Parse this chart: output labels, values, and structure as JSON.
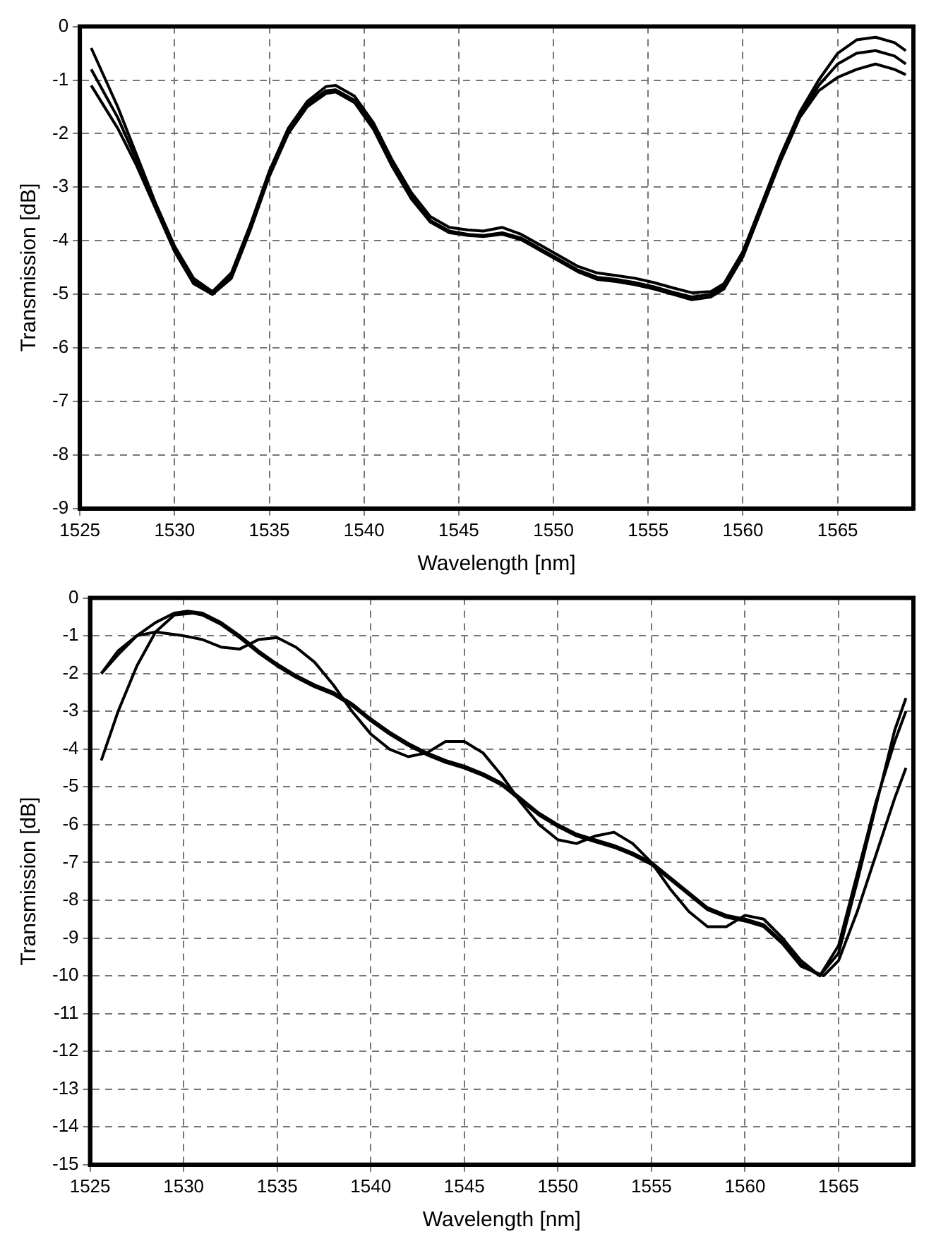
{
  "chart_data": [
    {
      "type": "line",
      "xlabel": "Wavelength [nm]",
      "ylabel": "Transmission [dB]",
      "xlim": [
        1525,
        1569
      ],
      "xticks": [
        1525,
        1530,
        1535,
        1540,
        1545,
        1550,
        1555,
        1560,
        1565
      ],
      "ylim": [
        -9,
        0
      ],
      "yticks": [
        -9,
        -8,
        -7,
        -6,
        -5,
        -4,
        -3,
        -2,
        -1,
        0
      ],
      "grid": true,
      "legend": false,
      "marker": "none",
      "line_style": "solid",
      "series": [
        {
          "color": "#000000",
          "x": [
            1525.6,
            1527,
            1528,
            1529,
            1530,
            1531,
            1532,
            1533,
            1534,
            1535,
            1536,
            1537,
            1538,
            1538.5,
            1539.5,
            1540.5,
            1541.5,
            1542.5,
            1543.5,
            1544.5,
            1545.5,
            1546.3,
            1547.3,
            1548.3,
            1549.3,
            1550.3,
            1551.3,
            1552.3,
            1553.3,
            1554.3,
            1555.3,
            1556.3,
            1557.3,
            1558.3,
            1559,
            1560,
            1561,
            1562,
            1563,
            1564,
            1565,
            1566,
            1567,
            1568,
            1568.6
          ],
          "values": [
            -0.4,
            -1.5,
            -2.4,
            -3.3,
            -4.1,
            -4.7,
            -4.95,
            -4.6,
            -3.7,
            -2.7,
            -1.9,
            -1.4,
            -1.12,
            -1.1,
            -1.3,
            -1.8,
            -2.5,
            -3.1,
            -3.55,
            -3.75,
            -3.8,
            -3.82,
            -3.75,
            -3.88,
            -4.08,
            -4.28,
            -4.48,
            -4.6,
            -4.65,
            -4.7,
            -4.78,
            -4.88,
            -4.97,
            -4.95,
            -4.8,
            -4.2,
            -3.3,
            -2.4,
            -1.6,
            -1.0,
            -0.5,
            -0.25,
            -0.2,
            -0.3,
            -0.45
          ]
        },
        {
          "color": "#000000",
          "x": [
            1525.6,
            1527,
            1528,
            1529,
            1530,
            1531,
            1532,
            1533,
            1534,
            1535,
            1536,
            1537,
            1538,
            1538.5,
            1539.5,
            1540.5,
            1541.5,
            1542.5,
            1543.5,
            1544.5,
            1545.5,
            1546.3,
            1547.3,
            1548.3,
            1549.3,
            1550.3,
            1551.3,
            1552.3,
            1553.3,
            1554.3,
            1555.3,
            1556.3,
            1557.3,
            1558.3,
            1559,
            1560,
            1561,
            1562,
            1563,
            1564,
            1565,
            1566,
            1567,
            1568,
            1568.6
          ],
          "values": [
            -0.8,
            -1.7,
            -2.5,
            -3.35,
            -4.15,
            -4.75,
            -5.0,
            -4.65,
            -3.75,
            -2.75,
            -1.95,
            -1.45,
            -1.2,
            -1.18,
            -1.38,
            -1.88,
            -2.58,
            -3.18,
            -3.62,
            -3.82,
            -3.88,
            -3.9,
            -3.85,
            -3.95,
            -4.15,
            -4.35,
            -4.55,
            -4.68,
            -4.72,
            -4.78,
            -4.86,
            -4.96,
            -5.05,
            -5.0,
            -4.85,
            -4.25,
            -3.35,
            -2.45,
            -1.65,
            -1.1,
            -0.7,
            -0.5,
            -0.45,
            -0.55,
            -0.7
          ]
        },
        {
          "color": "#000000",
          "x": [
            1525.6,
            1527,
            1528,
            1529,
            1530,
            1531,
            1532,
            1533,
            1534,
            1535,
            1536,
            1537,
            1538,
            1538.5,
            1539.5,
            1540.5,
            1541.5,
            1542.5,
            1543.5,
            1544.5,
            1545.5,
            1546.3,
            1547.3,
            1548.3,
            1549.3,
            1550.3,
            1551.3,
            1552.3,
            1553.3,
            1554.3,
            1555.3,
            1556.3,
            1557.3,
            1558.3,
            1559,
            1560,
            1561,
            1562,
            1563,
            1564,
            1565,
            1566,
            1567,
            1568,
            1568.6
          ],
          "values": [
            -1.1,
            -1.9,
            -2.6,
            -3.4,
            -4.2,
            -4.8,
            -5.0,
            -4.7,
            -3.8,
            -2.8,
            -2.0,
            -1.5,
            -1.25,
            -1.22,
            -1.42,
            -1.92,
            -2.62,
            -3.22,
            -3.65,
            -3.85,
            -3.9,
            -3.92,
            -3.88,
            -3.98,
            -4.18,
            -4.38,
            -4.58,
            -4.72,
            -4.76,
            -4.82,
            -4.9,
            -5.0,
            -5.1,
            -5.05,
            -4.9,
            -4.3,
            -3.4,
            -2.5,
            -1.7,
            -1.2,
            -0.95,
            -0.8,
            -0.7,
            -0.8,
            -0.9
          ]
        }
      ]
    },
    {
      "type": "line",
      "xlabel": "Wavelength [nm]",
      "ylabel": "Transmission [dB]",
      "xlim": [
        1525,
        1569
      ],
      "xticks": [
        1525,
        1530,
        1535,
        1540,
        1545,
        1550,
        1555,
        1560,
        1565
      ],
      "ylim": [
        -15,
        0
      ],
      "yticks": [
        -15,
        -14,
        -13,
        -12,
        -11,
        -10,
        -9,
        -8,
        -7,
        -6,
        -5,
        -4,
        -3,
        -2,
        -1,
        0
      ],
      "grid": true,
      "legend": false,
      "marker": "none",
      "line_style": "solid",
      "series": [
        {
          "color": "#000000",
          "x": [
            1525.6,
            1526.5,
            1527.5,
            1528.5,
            1529.5,
            1530.2,
            1531,
            1532,
            1533,
            1534,
            1535,
            1536,
            1537,
            1538,
            1539,
            1540,
            1541,
            1542,
            1543,
            1544,
            1545,
            1546,
            1547,
            1548,
            1549,
            1550,
            1551,
            1552,
            1553,
            1554,
            1555,
            1556,
            1557,
            1558,
            1559,
            1560,
            1561,
            1562,
            1563,
            1564,
            1565,
            1566,
            1567,
            1568,
            1568.6
          ],
          "values": [
            -2.0,
            -1.5,
            -1.0,
            -0.65,
            -0.4,
            -0.35,
            -0.4,
            -0.65,
            -1.0,
            -1.4,
            -1.75,
            -2.05,
            -2.3,
            -2.5,
            -2.8,
            -3.2,
            -3.55,
            -3.85,
            -4.1,
            -4.3,
            -4.45,
            -4.65,
            -4.9,
            -5.3,
            -5.7,
            -6.0,
            -6.25,
            -6.4,
            -6.55,
            -6.75,
            -7.0,
            -7.4,
            -7.8,
            -8.2,
            -8.4,
            -8.5,
            -8.65,
            -9.1,
            -9.7,
            -10.0,
            -9.2,
            -7.3,
            -5.4,
            -3.8,
            -3.0
          ]
        },
        {
          "color": "#000000",
          "x": [
            1525.6,
            1526.5,
            1527.5,
            1528.5,
            1529.5,
            1530.5,
            1531,
            1532,
            1533,
            1534,
            1535,
            1536,
            1537,
            1538,
            1539,
            1540,
            1541,
            1542,
            1543,
            1544,
            1545,
            1546,
            1547,
            1548,
            1549,
            1550,
            1551,
            1552,
            1553,
            1554,
            1555,
            1556,
            1557,
            1558,
            1559,
            1560,
            1561,
            1562,
            1563,
            1564.2,
            1565,
            1566,
            1567,
            1568,
            1568.6
          ],
          "values": [
            -4.3,
            -3.0,
            -1.8,
            -0.9,
            -0.45,
            -0.4,
            -0.45,
            -0.7,
            -1.05,
            -1.45,
            -1.8,
            -2.1,
            -2.35,
            -2.55,
            -2.85,
            -3.25,
            -3.6,
            -3.9,
            -4.15,
            -4.35,
            -4.5,
            -4.7,
            -4.95,
            -5.35,
            -5.75,
            -6.05,
            -6.3,
            -6.45,
            -6.6,
            -6.8,
            -7.05,
            -7.45,
            -7.85,
            -8.25,
            -8.45,
            -8.55,
            -8.7,
            -9.15,
            -9.75,
            -10.0,
            -9.6,
            -8.3,
            -6.8,
            -5.3,
            -4.5
          ]
        },
        {
          "color": "#000000",
          "x": [
            1525.6,
            1526.5,
            1527.5,
            1528.5,
            1530,
            1531,
            1532,
            1533,
            1534,
            1535,
            1536,
            1537,
            1538,
            1539,
            1540,
            1541,
            1542,
            1543,
            1544,
            1545,
            1546,
            1547,
            1548,
            1549,
            1550,
            1551,
            1552,
            1553,
            1554,
            1555,
            1556,
            1557,
            1558,
            1559,
            1560,
            1561,
            1562,
            1563,
            1564,
            1565,
            1566,
            1567,
            1568,
            1568.6
          ],
          "values": [
            -2.0,
            -1.4,
            -1.0,
            -0.9,
            -1.0,
            -1.1,
            -1.3,
            -1.35,
            -1.1,
            -1.05,
            -1.3,
            -1.7,
            -2.3,
            -3.0,
            -3.6,
            -4.0,
            -4.2,
            -4.1,
            -3.8,
            -3.8,
            -4.1,
            -4.7,
            -5.4,
            -6.0,
            -6.4,
            -6.5,
            -6.3,
            -6.2,
            -6.5,
            -7.0,
            -7.7,
            -8.3,
            -8.7,
            -8.7,
            -8.4,
            -8.5,
            -9.0,
            -9.6,
            -10.0,
            -9.4,
            -7.5,
            -5.5,
            -3.5,
            -2.65
          ]
        }
      ]
    }
  ]
}
